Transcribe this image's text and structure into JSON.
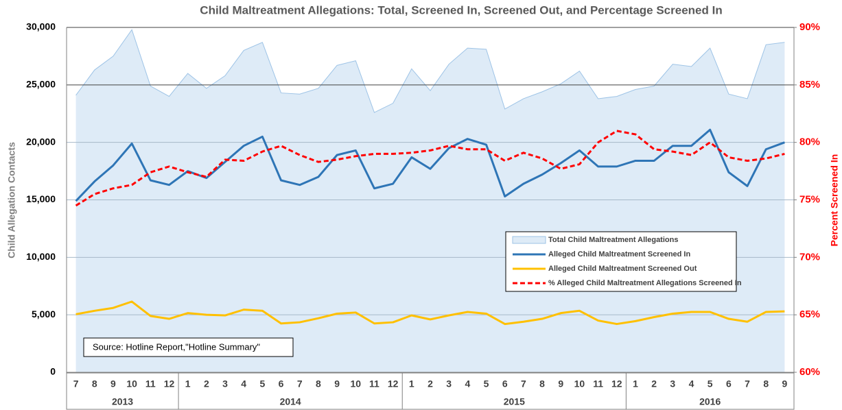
{
  "chart_data": {
    "type": "line",
    "title": "Child Maltreatment Allegations:  Total, Screened In, Screened Out, and Percentage Screened In",
    "ylabel": "Child Allegation Contacts",
    "y2label": "Percent Screened In",
    "annotation": "Source: Hotline Report,\"Hotline Summary\"",
    "categories": [
      "7",
      "8",
      "9",
      "10",
      "11",
      "12",
      "1",
      "2",
      "3",
      "4",
      "5",
      "6",
      "7",
      "8",
      "9",
      "10",
      "11",
      "12",
      "1",
      "2",
      "3",
      "4",
      "5",
      "6",
      "7",
      "8",
      "9",
      "10",
      "11",
      "12",
      "1",
      "2",
      "3",
      "4",
      "5",
      "6",
      "7",
      "8",
      "9"
    ],
    "years": [
      "2013",
      "2014",
      "2015",
      "2016"
    ],
    "ylim": [
      0,
      30000
    ],
    "yticks": [
      0,
      {
        "value": 5000,
        "label": "5,000"
      },
      {
        "value": 10000,
        "label": "10,000"
      },
      {
        "value": 15000,
        "label": "15,000"
      },
      {
        "value": 20000,
        "label": "20,000"
      },
      {
        "value": 25000,
        "label": "25,000"
      },
      {
        "value": 30000,
        "label": "30,000"
      }
    ],
    "y2lim": [
      60,
      90
    ],
    "y2ticks": [
      {
        "value": 60,
        "label": "60%"
      },
      {
        "value": 65,
        "label": "65%"
      },
      {
        "value": 70,
        "label": "70%"
      },
      {
        "value": 75,
        "label": "75%"
      },
      {
        "value": 80,
        "label": "80%"
      },
      {
        "value": 85,
        "label": "85%"
      },
      {
        "value": 90,
        "label": "90%"
      }
    ],
    "grid": true,
    "series": [
      {
        "name": "Total Child Maltreatment Allegations",
        "kind": "area",
        "color": "#9dc3e6",
        "fill": "#deebf7",
        "values": [
          24100,
          26300,
          27500,
          29800,
          24900,
          24000,
          26000,
          24700,
          25800,
          28000,
          28700,
          24300,
          24200,
          24700,
          26700,
          27100,
          22600,
          23400,
          26400,
          24500,
          26800,
          28200,
          28100,
          22900,
          23800,
          24400,
          25100,
          26200,
          23800,
          24000,
          24600,
          24900,
          26800,
          26600,
          28200,
          24200,
          23800,
          28500,
          28700
        ]
      },
      {
        "name": "Alleged Child Maltreatment Screened In",
        "kind": "line",
        "color": "#2e75b6",
        "values": [
          14900,
          16600,
          18000,
          19900,
          16700,
          16300,
          17500,
          16900,
          18300,
          19700,
          20500,
          16700,
          16300,
          17000,
          18900,
          19300,
          16000,
          16400,
          18700,
          17700,
          19500,
          20300,
          19800,
          15300,
          16400,
          17200,
          18200,
          19300,
          17900,
          17900,
          18400,
          18400,
          19700,
          19700,
          21100,
          17400,
          16200,
          19400,
          20000
        ]
      },
      {
        "name": "Alleged Child Maltreatment Screened Out",
        "kind": "line",
        "color": "#ffc000",
        "values": [
          5050,
          5350,
          5600,
          6150,
          4900,
          4650,
          5150,
          5000,
          4950,
          5450,
          5350,
          4250,
          4350,
          4700,
          5100,
          5200,
          4250,
          4350,
          4950,
          4600,
          4950,
          5250,
          5100,
          4200,
          4400,
          4650,
          5150,
          5350,
          4500,
          4200,
          4450,
          4800,
          5100,
          5250,
          5250,
          4650,
          4400,
          5250,
          5300
        ]
      },
      {
        "name": "% Alleged Child Maltreatment Allegations Screened In",
        "kind": "line",
        "dash": true,
        "axis": "y2",
        "color": "#ff0000",
        "values": [
          74.5,
          75.5,
          76.0,
          76.3,
          77.4,
          77.9,
          77.4,
          77.0,
          78.5,
          78.4,
          79.2,
          79.7,
          78.9,
          78.3,
          78.5,
          78.8,
          79.0,
          79.0,
          79.1,
          79.3,
          79.7,
          79.4,
          79.4,
          78.4,
          79.1,
          78.6,
          77.7,
          78.1,
          80.0,
          81.0,
          80.7,
          79.4,
          79.2,
          78.9,
          80.0,
          78.7,
          78.4,
          78.6,
          79.0
        ]
      }
    ]
  }
}
